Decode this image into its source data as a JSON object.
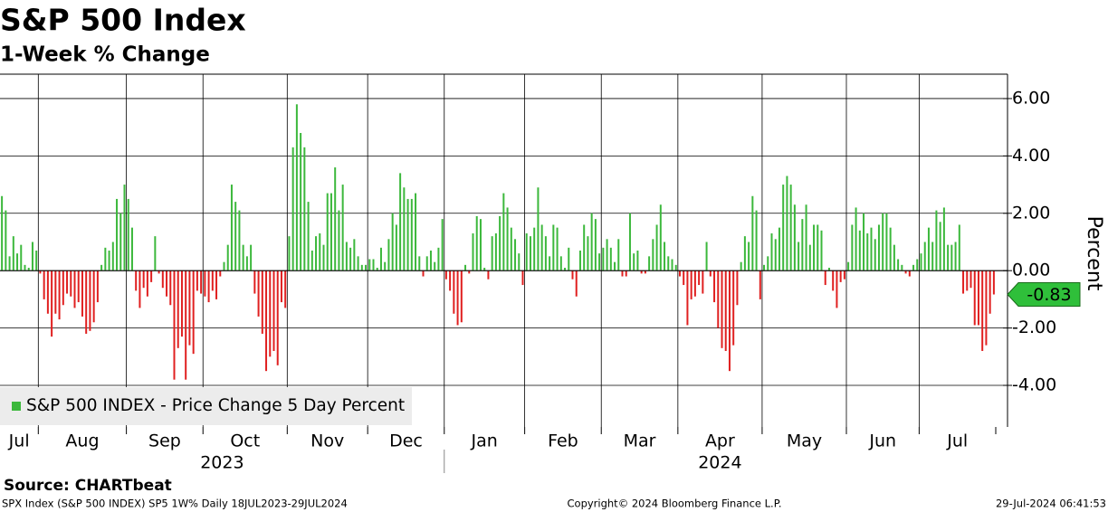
{
  "chart_data": {
    "type": "bar",
    "title": "S&P 500 Index",
    "subtitle": "1-Week % Change",
    "y_label": "Percent",
    "source": "Source: CHARTbeat",
    "series_name": "S&P 500 INDEX - Price Change 5 Day Percent",
    "color": "#3cb83c",
    "negative_color": "#e02020",
    "legend": "lower left",
    "grid": true,
    "ylim": [
      -5.45,
      6.85
    ],
    "yticks": [
      {
        "value": -4,
        "label": "-4.00"
      },
      {
        "value": -2,
        "label": "-2.00"
      },
      {
        "value": 0,
        "label": "0.00"
      },
      {
        "value": 2,
        "label": "2.00"
      },
      {
        "value": 4,
        "label": "4.00"
      },
      {
        "value": 6,
        "label": "6.00"
      }
    ],
    "years": [
      {
        "label": "2023",
        "months": [
          {
            "label": "Jul",
            "values": [
              2.6,
              2.1,
              0.5,
              1.2,
              0.6,
              0.9,
              0.2,
              0.1,
              1.0,
              0.7
            ]
          },
          {
            "label": "Aug",
            "values": [
              -0.1,
              -1.0,
              -1.5,
              -2.3,
              -1.5,
              -1.7,
              -1.2,
              -0.8,
              -0.9,
              -1.3,
              -1.1,
              -1.6,
              -2.2,
              -2.1,
              -1.8,
              -1.1,
              0.2,
              0.8,
              0.7,
              1.0,
              2.5,
              2.0,
              3.0
            ]
          },
          {
            "label": "Sep",
            "values": [
              2.5,
              1.5,
              -0.7,
              -1.3,
              -0.6,
              -0.9,
              -0.4,
              1.2,
              -0.1,
              -0.6,
              -0.9,
              -1.2,
              -3.8,
              -2.7,
              -2.3,
              -3.8,
              -2.6,
              -2.9,
              -0.7,
              -0.8
            ]
          },
          {
            "label": "Oct",
            "values": [
              -0.9,
              -1.1,
              -0.7,
              -1.0,
              -0.2,
              0.3,
              0.9,
              3.0,
              2.4,
              2.1,
              0.9,
              0.5,
              0.9,
              -0.8,
              -1.6,
              -2.2,
              -3.5,
              -3.0,
              -2.8,
              -3.3,
              -1.1,
              -1.3
            ]
          },
          {
            "label": "Nov",
            "values": [
              1.2,
              4.3,
              5.8,
              4.8,
              4.3,
              2.4,
              0.7,
              1.2,
              1.3,
              0.9,
              2.7,
              2.7,
              3.6,
              2.1,
              3.0,
              1.0,
              0.8,
              1.1,
              0.5,
              0.2,
              0.2
            ]
          },
          {
            "label": "Dec",
            "values": [
              0.4,
              0.4,
              0.1,
              0.8,
              0.3,
              1.1,
              2.0,
              1.6,
              3.4,
              2.9,
              2.5,
              2.5,
              2.7,
              0.5,
              -0.2,
              0.5,
              0.7,
              0.3,
              0.8,
              1.8
            ]
          }
        ]
      },
      {
        "label": "2024",
        "months": [
          {
            "label": "Jan",
            "values": [
              -0.3,
              -0.7,
              -1.5,
              -1.9,
              -1.8,
              0.2,
              -0.1,
              1.3,
              1.9,
              1.8,
              0.1,
              -0.3,
              1.2,
              1.3,
              1.9,
              2.7,
              2.2,
              1.5,
              1.1,
              0.6,
              -0.5
            ]
          },
          {
            "label": "Feb",
            "values": [
              1.3,
              1.2,
              1.5,
              2.9,
              1.6,
              1.2,
              0.5,
              1.6,
              1.5,
              0.5,
              0.1,
              0.8,
              -0.3,
              -0.9,
              0.7,
              1.6,
              1.2,
              2.0,
              1.8,
              0.6
            ]
          },
          {
            "label": "Mar",
            "values": [
              0.8,
              1.1,
              0.8,
              0.3,
              1.1,
              -0.2,
              -0.2,
              2.0,
              0.6,
              0.7,
              -0.1,
              -0.1,
              0.5,
              1.1,
              1.6,
              2.3,
              1.0,
              0.5,
              0.4,
              0.2
            ]
          },
          {
            "label": "Apr",
            "values": [
              -0.2,
              -0.5,
              -1.9,
              -1.0,
              -0.9,
              -0.5,
              -0.8,
              1.0,
              -0.2,
              -1.1,
              -2.0,
              -2.7,
              -2.8,
              -3.5,
              -2.6,
              -1.2,
              0.3,
              1.2,
              1.0,
              2.6,
              2.1,
              -1.0
            ]
          },
          {
            "label": "May",
            "values": [
              0.2,
              0.5,
              1.3,
              1.1,
              1.5,
              3.0,
              3.3,
              3.0,
              2.3,
              1.0,
              1.8,
              2.3,
              0.9,
              1.6,
              1.6,
              1.4,
              -0.5,
              0.1,
              -0.7,
              -1.3,
              -0.4,
              -0.3
            ]
          },
          {
            "label": "Jun",
            "values": [
              0.3,
              1.6,
              2.2,
              1.4,
              2.0,
              1.3,
              1.5,
              1.1,
              1.6,
              2.0,
              2.0,
              1.5,
              0.9,
              0.4,
              0.2,
              -0.1,
              -0.2,
              0.2,
              0.4
            ]
          },
          {
            "label": "Jul",
            "values": [
              0.6,
              1.0,
              1.5,
              1.0,
              2.1,
              1.7,
              2.2,
              0.9,
              0.9,
              1.0,
              1.6,
              -0.8,
              -0.7,
              -0.6,
              -1.9,
              -1.9,
              -2.8,
              -2.6,
              -1.5,
              -0.83
            ]
          }
        ]
      }
    ],
    "footer": {
      "left": "SPX Index (S&P 500 INDEX) SP5 1W%  Daily 18JUL2023-29JUL2024",
      "center": "Copyright© 2024 Bloomberg Finance L.P.",
      "right": "29-Jul-2024 06:41:53"
    }
  }
}
